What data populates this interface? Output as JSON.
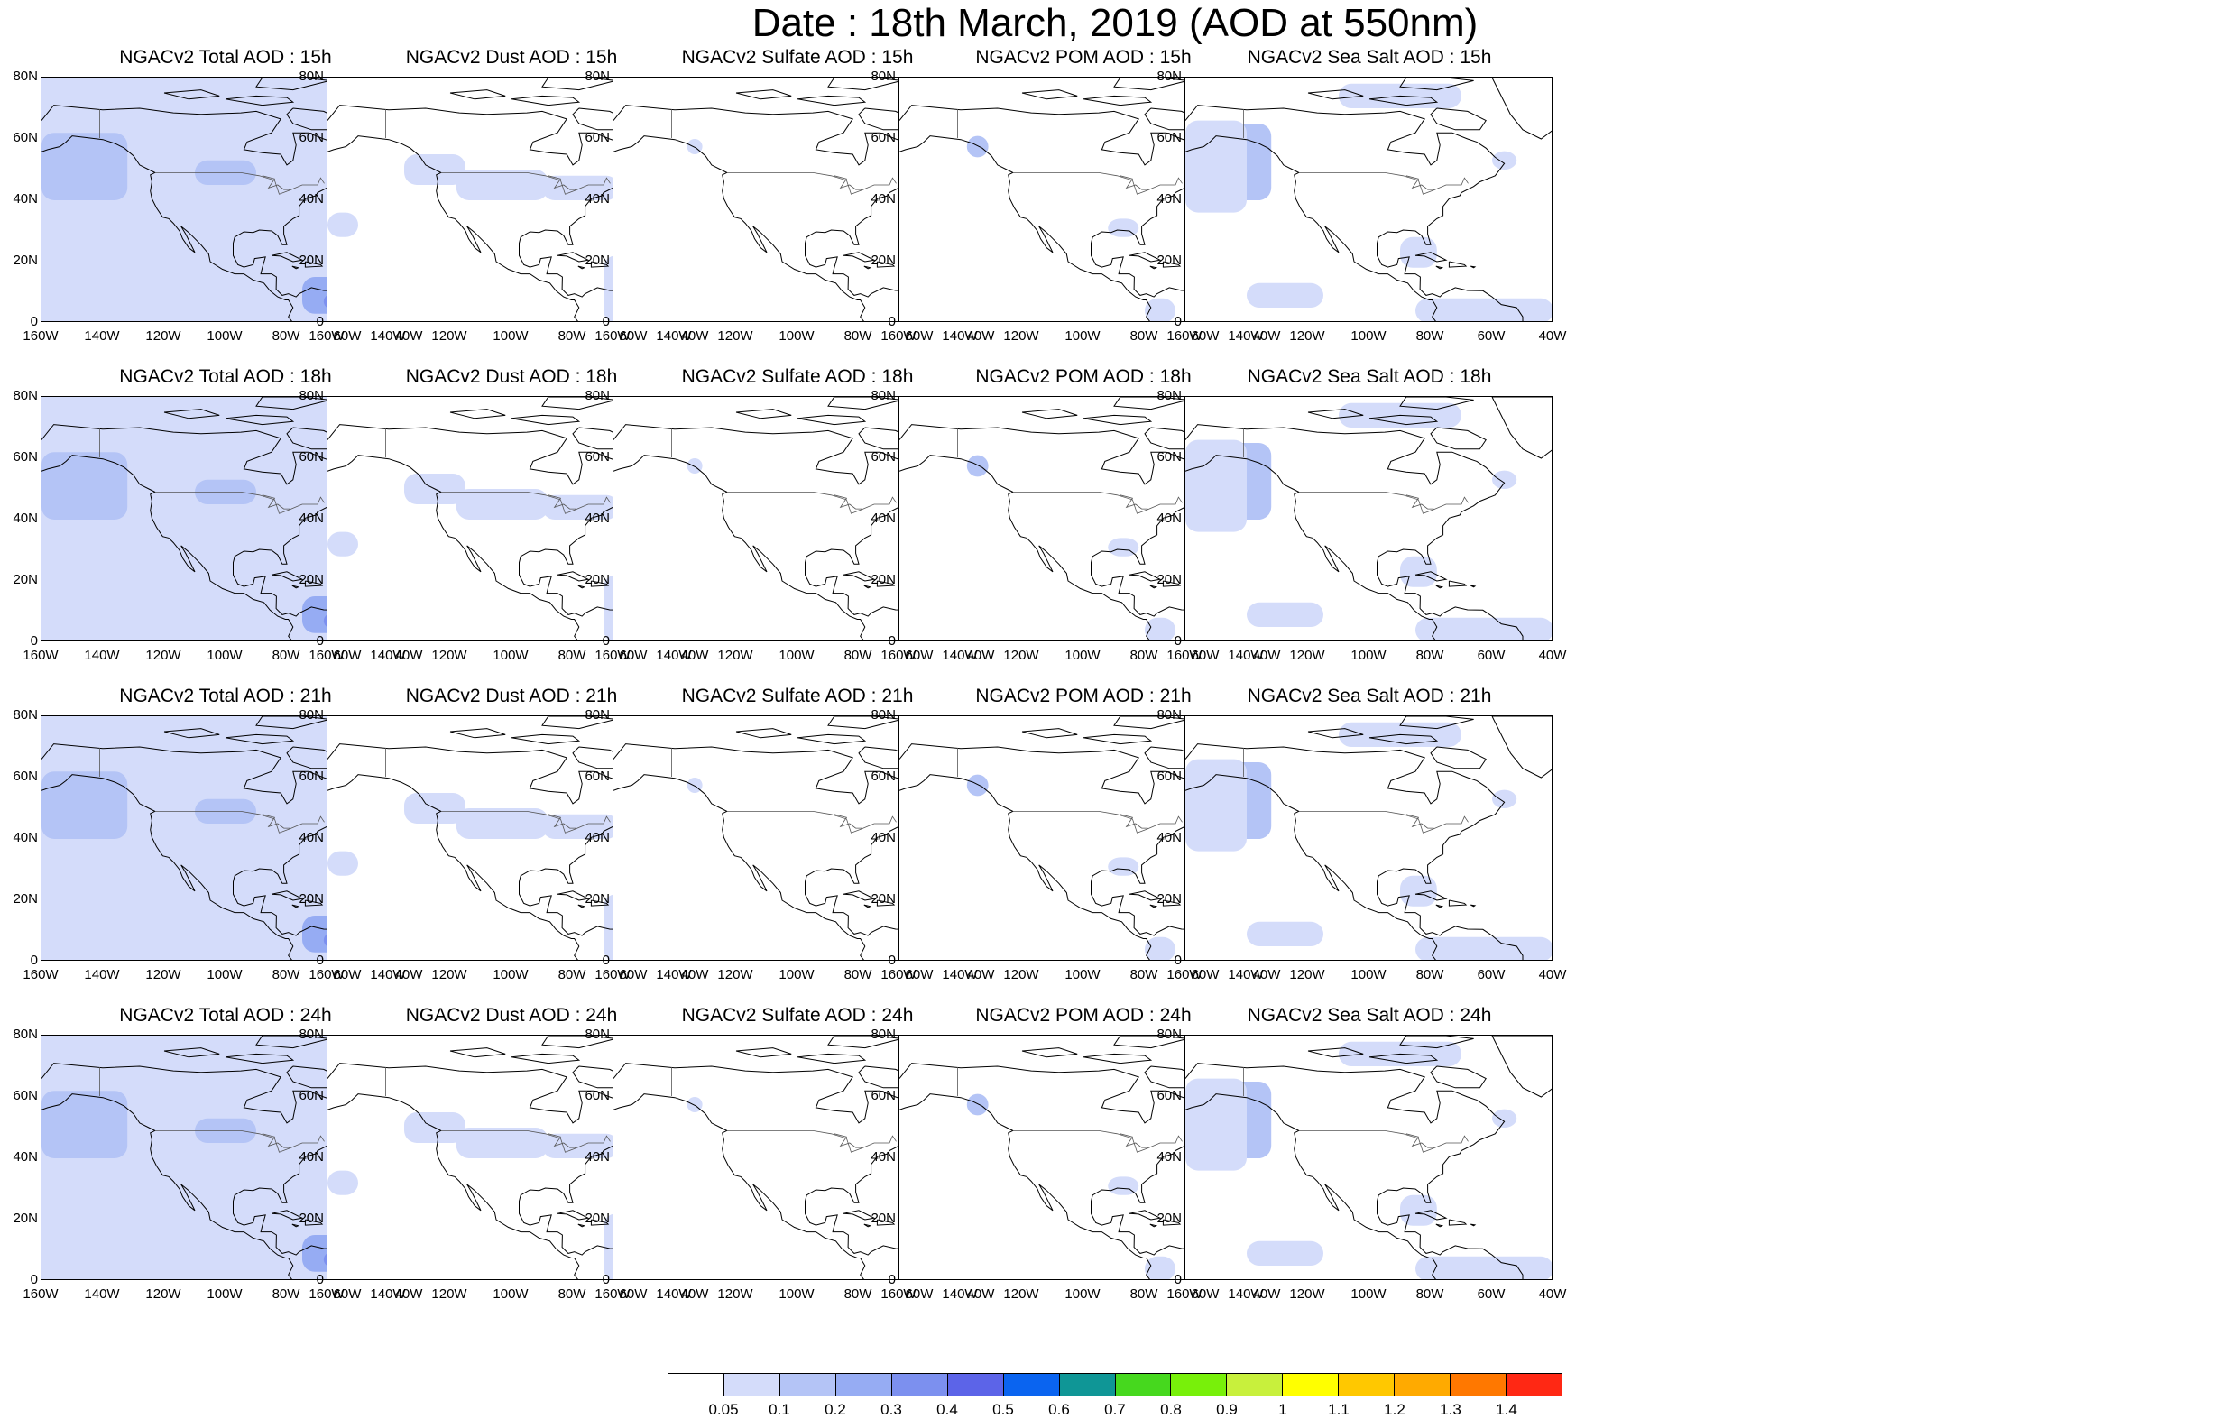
{
  "figure": {
    "title": "Date : 18th March, 2019 (AOD at 550nm)",
    "lat_ticks": [
      "80N",
      "60N",
      "40N",
      "20N",
      "0"
    ],
    "lon_ticks": [
      "160W",
      "140W",
      "120W",
      "100W",
      "80W",
      "60W",
      "40W"
    ]
  },
  "rows": [
    {
      "panels": [
        {
          "title": "NGACv2 Total AOD : 15h",
          "species": "total"
        },
        {
          "title": "NGACv2 Dust AOD : 15h",
          "species": "dust"
        },
        {
          "title": "NGACv2 Sulfate AOD : 15h",
          "species": "sulfate"
        },
        {
          "title": "NGACv2 POM AOD : 15h",
          "species": "pom"
        },
        {
          "title": "NGACv2 Sea Salt AOD : 15h",
          "species": "seasalt"
        }
      ]
    },
    {
      "panels": [
        {
          "title": "NGACv2 Total AOD : 18h",
          "species": "total"
        },
        {
          "title": "NGACv2 Dust AOD : 18h",
          "species": "dust"
        },
        {
          "title": "NGACv2 Sulfate AOD : 18h",
          "species": "sulfate"
        },
        {
          "title": "NGACv2 POM AOD : 18h",
          "species": "pom"
        },
        {
          "title": "NGACv2 Sea Salt AOD : 18h",
          "species": "seasalt"
        }
      ]
    },
    {
      "panels": [
        {
          "title": "NGACv2 Total AOD : 21h",
          "species": "total"
        },
        {
          "title": "NGACv2 Dust AOD : 21h",
          "species": "dust"
        },
        {
          "title": "NGACv2 Sulfate AOD : 21h",
          "species": "sulfate"
        },
        {
          "title": "NGACv2 POM AOD : 21h",
          "species": "pom"
        },
        {
          "title": "NGACv2 Sea Salt AOD : 21h",
          "species": "seasalt"
        }
      ]
    },
    {
      "panels": [
        {
          "title": "NGACv2 Total AOD : 24h",
          "species": "total"
        },
        {
          "title": "NGACv2 Dust AOD : 24h",
          "species": "dust"
        },
        {
          "title": "NGACv2 Sulfate AOD : 24h",
          "species": "sulfate"
        },
        {
          "title": "NGACv2 POM AOD : 24h",
          "species": "pom"
        },
        {
          "title": "NGACv2 Sea Salt  AOD : 24h",
          "species": "seasalt"
        }
      ]
    }
  ],
  "colorbar": {
    "labels": [
      "0.05",
      "0.1",
      "0.2",
      "0.3",
      "0.4",
      "0.5",
      "0.6",
      "0.7",
      "0.8",
      "0.9",
      "1",
      "1.1",
      "1.2",
      "1.3",
      "1.4"
    ],
    "colors": [
      "#ffffff",
      "#d4dcfa",
      "#b4c4f6",
      "#96acf3",
      "#7c90ef",
      "#5c64e8",
      "#0a64f0",
      "#0f9696",
      "#46d81e",
      "#78f00a",
      "#c8f03c",
      "#ffff00",
      "#ffc800",
      "#ffaa00",
      "#ff7800",
      "#ff2814"
    ]
  }
}
